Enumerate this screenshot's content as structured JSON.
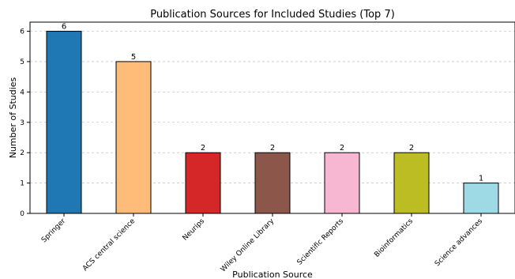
{
  "chart_data": {
    "type": "bar",
    "title": "Publication Sources for Included Studies (Top 7)",
    "xlabel": "Publication Source",
    "ylabel": "Number of Studies",
    "categories": [
      "Springer",
      "ACS central science",
      "Neurips",
      "Wiley Online Library",
      "Scientific Reports",
      "Bioinformatics",
      "Science advances"
    ],
    "values": [
      6,
      5,
      2,
      2,
      2,
      2,
      1
    ],
    "colors": [
      "#1f77b4",
      "#ffbb78",
      "#d62728",
      "#8c564b",
      "#f7b6d2",
      "#bcbd22",
      "#9edae5"
    ],
    "ylim": [
      0,
      6.3
    ],
    "yticks": [
      0,
      1,
      2,
      3,
      4,
      5,
      6
    ],
    "grid": true,
    "data_labels": true
  }
}
